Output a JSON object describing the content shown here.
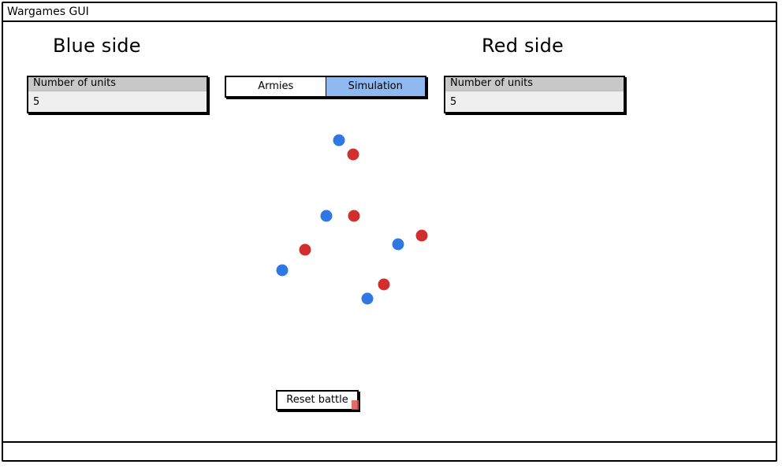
{
  "window": {
    "title": "Wargames GUI"
  },
  "blue": {
    "title": "Blue side",
    "panel": {
      "label": "Number of units",
      "value": "5"
    },
    "color": "#2f78e3"
  },
  "red": {
    "title": "Red side",
    "panel": {
      "label": "Number of units",
      "value": "5"
    },
    "color": "#d12e2e"
  },
  "tabs": [
    {
      "label": "Armies",
      "active": false
    },
    {
      "label": "Simulation",
      "active": true
    }
  ],
  "reset_label": "Reset battle"
}
